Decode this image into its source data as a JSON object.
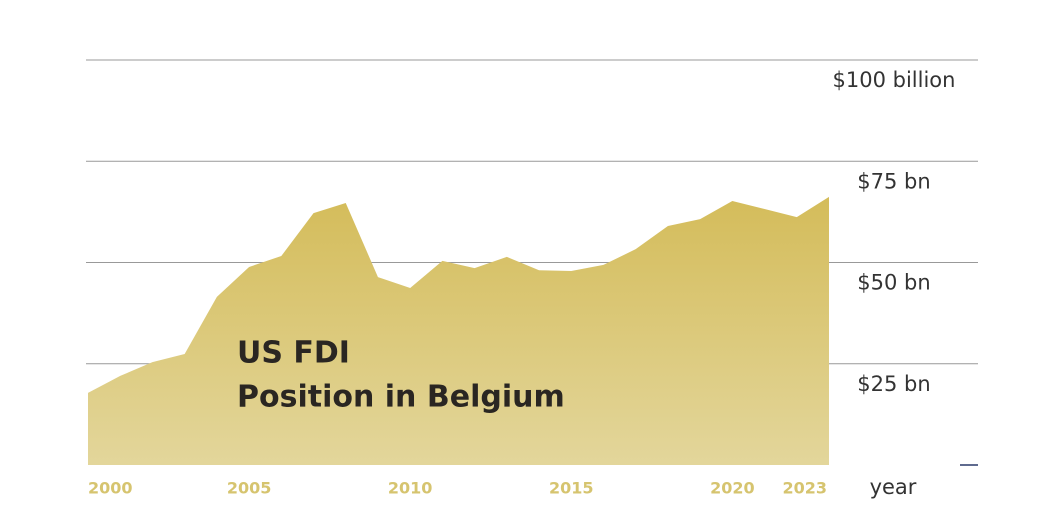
{
  "chart_data": {
    "type": "area",
    "title": [
      "US FDI",
      "Position in Belgium"
    ],
    "x_label": "year",
    "x": [
      2000,
      2001,
      2002,
      2003,
      2004,
      2005,
      2006,
      2007,
      2008,
      2009,
      2010,
      2011,
      2012,
      2013,
      2014,
      2015,
      2016,
      2017,
      2018,
      2019,
      2020,
      2021,
      2022,
      2023
    ],
    "values": [
      17.8,
      22,
      25.4,
      27.4,
      41.5,
      48.9,
      51.6,
      62.2,
      64.7,
      46.4,
      43.7,
      50.4,
      48.6,
      51.4,
      48.1,
      47.9,
      49.4,
      53.3,
      59,
      60.7,
      65.2,
      63.2,
      61.2,
      66.2
    ],
    "color": "#d6c168",
    "xlim": [
      2000,
      2023
    ],
    "xticks": [
      2000,
      2005,
      2010,
      2015,
      2020,
      2023
    ],
    "ylim": [
      0,
      100
    ],
    "yticks": [
      {
        "value": 25,
        "label": "$25 bn"
      },
      {
        "value": 50,
        "label": "$50 bn"
      },
      {
        "value": 75,
        "label": "$75 bn"
      },
      {
        "value": 100,
        "label": "$100 billion"
      }
    ],
    "grid": true
  }
}
